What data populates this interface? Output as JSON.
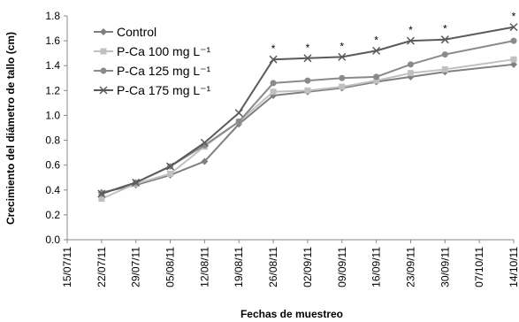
{
  "chart_data": {
    "type": "line",
    "x_label": "Fechas de muestreo",
    "y_label": "Crecimiento del diámetro de tallo (cm)",
    "x": [
      "22/07/11",
      "29/07/11",
      "05/08/11",
      "12/08/11",
      "19/08/11",
      "26/08/11",
      "02/09/11",
      "09/09/11",
      "16/09/11",
      "23/09/11",
      "30/09/11",
      "14/10/11"
    ],
    "xlim": [
      "15/07/11",
      "14/10/11"
    ],
    "xticks": [
      "15/07/11",
      "22/07/11",
      "29/07/11",
      "05/08/11",
      "12/08/11",
      "19/08/11",
      "26/08/11",
      "02/09/11",
      "09/09/11",
      "16/09/11",
      "23/09/11",
      "30/09/11",
      "07/10/11",
      "14/10/11"
    ],
    "ylim": [
      0,
      1.8
    ],
    "yticks": [
      {
        "value": 0,
        "label": "0.0"
      },
      {
        "value": 0.2,
        "label": "0.2"
      },
      {
        "value": 0.4,
        "label": "0.4"
      },
      {
        "value": 0.6,
        "label": "0.6"
      },
      {
        "value": 0.8,
        "label": "0.8"
      },
      {
        "value": 1,
        "label": "1.0"
      },
      {
        "value": 1.2,
        "label": "1.2"
      },
      {
        "value": 1.4,
        "label": "1.4"
      },
      {
        "value": 1.6,
        "label": "1.6"
      },
      {
        "value": 1.8,
        "label": "1.8"
      }
    ],
    "legend": "upper left",
    "series": [
      {
        "name": "Control",
        "color": "#7f7f7f",
        "marker": "diamond",
        "values": [
          0.38,
          0.44,
          0.52,
          0.63,
          0.93,
          1.16,
          1.19,
          1.22,
          1.27,
          1.31,
          1.35,
          1.41
        ]
      },
      {
        "name": "P-Ca 100 mg L⁻¹",
        "color": "#c0c0c0",
        "marker": "square",
        "values": [
          0.33,
          0.45,
          0.53,
          0.75,
          0.95,
          1.19,
          1.2,
          1.23,
          1.28,
          1.34,
          1.37,
          1.45
        ]
      },
      {
        "name": "P-Ca 125 mg L⁻¹",
        "color": "#8a8a8a",
        "marker": "circle",
        "values": [
          0.37,
          0.46,
          0.59,
          0.76,
          0.95,
          1.26,
          1.28,
          1.3,
          1.31,
          1.41,
          1.49,
          1.6
        ]
      },
      {
        "name": "P-Ca 175 mg L⁻¹",
        "color": "#5a5a5a",
        "marker": "x",
        "values": [
          0.37,
          0.46,
          0.59,
          0.78,
          1.02,
          1.45,
          1.46,
          1.47,
          1.52,
          1.6,
          1.61,
          1.71
        ]
      }
    ],
    "annotations": [
      {
        "x": "26/08/11",
        "text": "*"
      },
      {
        "x": "02/09/11",
        "text": "*"
      },
      {
        "x": "09/09/11",
        "text": "*"
      },
      {
        "x": "16/09/11",
        "text": "*"
      },
      {
        "x": "23/09/11",
        "text": "*"
      },
      {
        "x": "30/09/11",
        "text": "*"
      },
      {
        "x": "14/10/11",
        "text": "*"
      }
    ]
  }
}
